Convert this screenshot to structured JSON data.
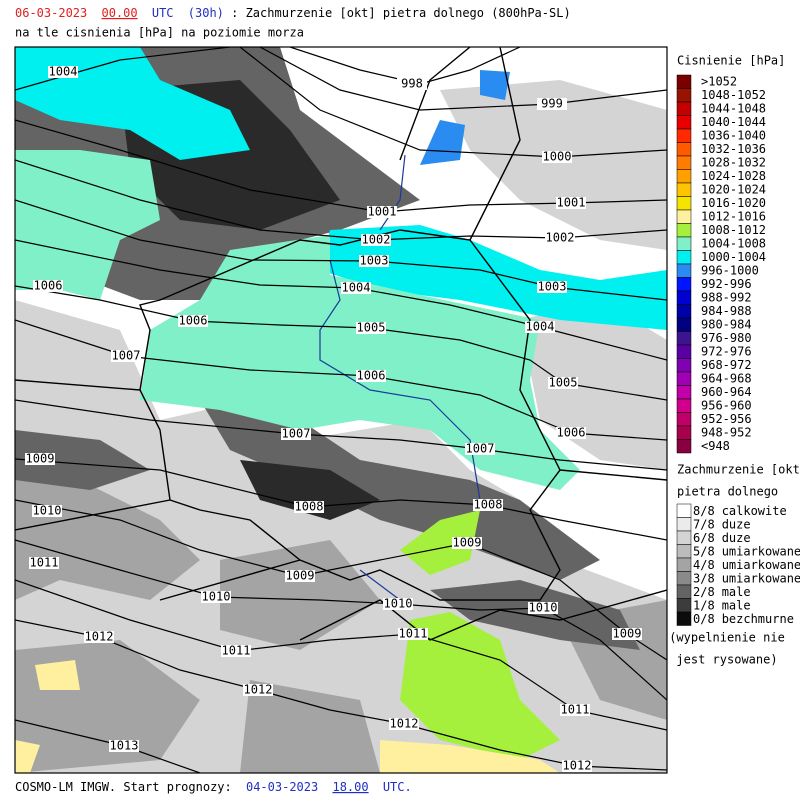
{
  "header": {
    "date": "06-03-2023",
    "hour": "00.00",
    "zone": "UTC",
    "lead": "(30h)",
    "title": ": Zachmurzenie [okt] pietra dolnego (800hPa-SL)",
    "subtitle": "na tle cisnienia [hPa] na poziomie morza"
  },
  "pressure_legend": {
    "title": "Cisnienie [hPa]",
    "items": [
      {
        "label": ">1052",
        "color": "#7a0000"
      },
      {
        "label": "1048-1052",
        "color": "#9a1200"
      },
      {
        "label": "1044-1048",
        "color": "#c40000"
      },
      {
        "label": "1040-1044",
        "color": "#e80000"
      },
      {
        "label": "1036-1040",
        "color": "#ff2a00"
      },
      {
        "label": "1032-1036",
        "color": "#ff5a00"
      },
      {
        "label": "1028-1032",
        "color": "#ff7c00"
      },
      {
        "label": "1024-1028",
        "color": "#ffa000"
      },
      {
        "label": "1020-1024",
        "color": "#ffc400"
      },
      {
        "label": "1016-1020",
        "color": "#f4e400"
      },
      {
        "label": "1012-1016",
        "color": "#fff0a0"
      },
      {
        "label": "1008-1012",
        "color": "#a4f03c"
      },
      {
        "label": "1004-1008",
        "color": "#7ff0c8"
      },
      {
        "label": "1000-1004",
        "color": "#00f0f0"
      },
      {
        "label": "996-1000",
        "color": "#2a8cf0"
      },
      {
        "label": "992-996",
        "color": "#0014ff"
      },
      {
        "label": "988-992",
        "color": "#0000d0"
      },
      {
        "label": "984-988",
        "color": "#0000a8"
      },
      {
        "label": "980-984",
        "color": "#000080"
      },
      {
        "label": "976-980",
        "color": "#3c1490"
      },
      {
        "label": "972-976",
        "color": "#5a00a0"
      },
      {
        "label": "968-972",
        "color": "#8000b4"
      },
      {
        "label": "964-968",
        "color": "#a000b4"
      },
      {
        "label": "960-964",
        "color": "#c000a8"
      },
      {
        "label": "956-960",
        "color": "#d0008c"
      },
      {
        "label": "952-956",
        "color": "#c00068"
      },
      {
        "label": "948-952",
        "color": "#a8004c"
      },
      {
        "label": "<948",
        "color": "#880040"
      }
    ]
  },
  "cloud_legend": {
    "title": "Zachmurzenie [okt]",
    "subtitle": "pietra dolnego",
    "items": [
      {
        "code": "8/8",
        "label": "calkowite",
        "color": "#ffffff"
      },
      {
        "code": "7/8",
        "label": "duze",
        "color": "#ebebeb"
      },
      {
        "code": "6/8",
        "label": "duze",
        "color": "#d4d4d4"
      },
      {
        "code": "5/8",
        "label": "umiarkowane",
        "color": "#bcbcbc"
      },
      {
        "code": "4/8",
        "label": "umiarkowane",
        "color": "#a4a4a4"
      },
      {
        "code": "3/8",
        "label": "umiarkowane",
        "color": "#8a8a8a"
      },
      {
        "code": "2/8",
        "label": "male",
        "color": "#646464"
      },
      {
        "code": "1/8",
        "label": "male",
        "color": "#3c3c3c"
      },
      {
        "code": "0/8",
        "label": "bezchmurne",
        "color": "#0c0c0c"
      }
    ],
    "note": [
      "(wypelnienie nie",
      "jest rysowane)"
    ]
  },
  "map": {
    "isobar_labels": [
      "1004",
      "998",
      "999",
      "1000",
      "1001",
      "1001",
      "1002",
      "1002",
      "1003",
      "1003",
      "1004",
      "1004",
      "1005",
      "1005",
      "1006",
      "1006",
      "1006",
      "1006",
      "1007",
      "1007",
      "1007",
      "1008",
      "1008",
      "1009",
      "1009",
      "1009",
      "1009",
      "1010",
      "1010",
      "1010",
      "1010",
      "1011",
      "1011",
      "1011",
      "1011",
      "1012",
      "1012",
      "1012",
      "1012",
      "1013"
    ]
  },
  "footer": {
    "text": "COSMO-LM IMGW. Start prognozy:",
    "date": "04-03-2023",
    "hour": "18.00",
    "zone": "UTC."
  }
}
